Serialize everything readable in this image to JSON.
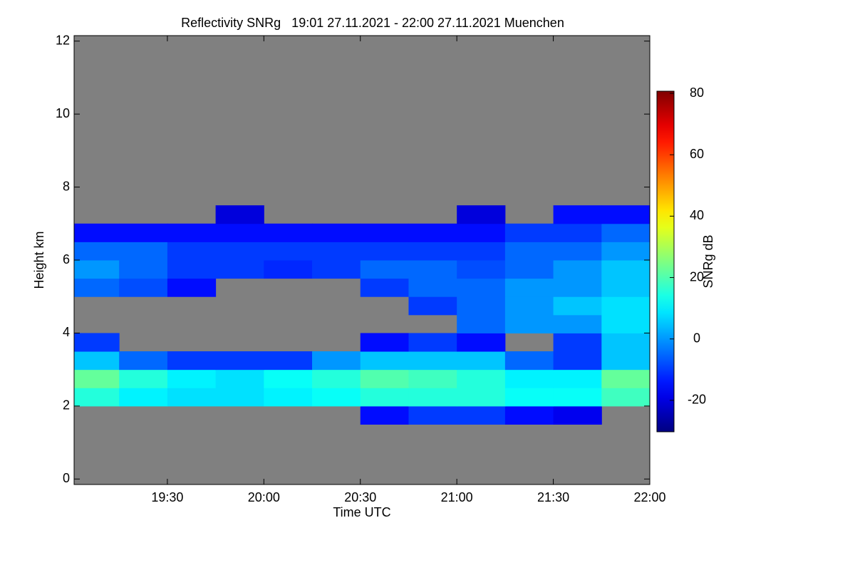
{
  "chart_data": {
    "type": "heatmap",
    "title": "Reflectivity SNRg   19:01 27.11.2021 - 22:00 27.11.2021 Muenchen",
    "x_label": "Time UTC",
    "y_label": "Height km",
    "xlim": [
      "19:01",
      "22:00"
    ],
    "xticks": [
      "19:30",
      "20:00",
      "20:30",
      "21:00",
      "21:30",
      "22:00"
    ],
    "ylim": [
      -0.15,
      12.15
    ],
    "yticks": [
      0,
      2,
      4,
      6,
      8,
      10,
      12
    ],
    "background_color": "#808080",
    "x_bins": [
      "19:01",
      "19:15",
      "19:30",
      "19:45",
      "20:00",
      "20:15",
      "20:30",
      "20:45",
      "21:00",
      "21:15",
      "21:30",
      "21:45",
      "22:00"
    ],
    "y_bins": [
      1.5,
      2,
      2.5,
      3,
      3.5,
      4,
      4.5,
      5,
      5.5,
      6,
      6.5,
      7,
      7.5
    ],
    "z": [
      [
        null,
        null,
        null,
        null,
        null,
        null,
        -15,
        -10,
        -10,
        -15,
        -18,
        null
      ],
      [
        15,
        10,
        8,
        8,
        10,
        12,
        15,
        15,
        15,
        12,
        12,
        18
      ],
      [
        22,
        15,
        10,
        8,
        12,
        15,
        20,
        18,
        15,
        10,
        10,
        22
      ],
      [
        5,
        -5,
        -10,
        -10,
        -10,
        0,
        5,
        5,
        5,
        -5,
        -10,
        5
      ],
      [
        -10,
        null,
        null,
        null,
        null,
        null,
        -15,
        -10,
        -15,
        null,
        -10,
        5
      ],
      [
        null,
        null,
        null,
        null,
        null,
        null,
        null,
        null,
        -5,
        0,
        0,
        8
      ],
      [
        null,
        null,
        null,
        null,
        null,
        null,
        null,
        -10,
        -5,
        0,
        5,
        8
      ],
      [
        -5,
        -8,
        -15,
        null,
        null,
        null,
        -10,
        -5,
        -5,
        0,
        0,
        5
      ],
      [
        0,
        -5,
        -10,
        -10,
        -12,
        -10,
        -5,
        -5,
        -8,
        -5,
        0,
        5
      ],
      [
        -5,
        -5,
        -10,
        -10,
        -10,
        -10,
        -10,
        -10,
        -10,
        -5,
        -5,
        0
      ],
      [
        -15,
        -15,
        -15,
        -15,
        -15,
        -15,
        -15,
        -15,
        -15,
        -10,
        -10,
        -5
      ],
      [
        null,
        null,
        null,
        -20,
        null,
        null,
        null,
        null,
        -20,
        null,
        -15,
        -15
      ]
    ],
    "colorbar": {
      "label": "SNRg dB",
      "lim": [
        -30,
        80
      ],
      "ticks": [
        -20,
        0,
        20,
        40,
        60,
        80
      ]
    }
  }
}
